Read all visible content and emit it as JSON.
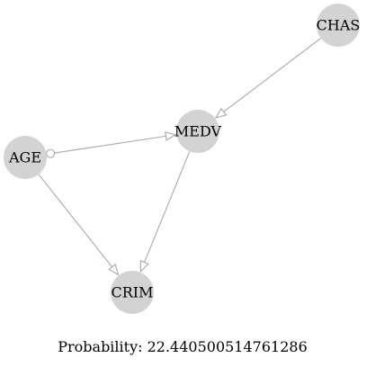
{
  "graph": {
    "nodes": [
      {
        "id": "CHAS",
        "label": "CHAS"
      },
      {
        "id": "MEDV",
        "label": "MEDV"
      },
      {
        "id": "AGE",
        "label": "AGE"
      },
      {
        "id": "CRIM",
        "label": "CRIM"
      }
    ],
    "edges": [
      {
        "from": "CHAS",
        "to": "MEDV",
        "tail": "none",
        "head": "arrow"
      },
      {
        "from": "AGE",
        "to": "MEDV",
        "tail": "circle",
        "head": "arrow"
      },
      {
        "from": "AGE",
        "to": "CRIM",
        "tail": "none",
        "head": "arrow"
      },
      {
        "from": "MEDV",
        "to": "CRIM",
        "tail": "none",
        "head": "arrow"
      }
    ]
  },
  "caption": "Probability: 22.440500514761286",
  "colors": {
    "node_fill": "#d3d3d3",
    "edge_stroke": "#a9a9a9",
    "text": "#000000",
    "background": "#ffffff"
  }
}
